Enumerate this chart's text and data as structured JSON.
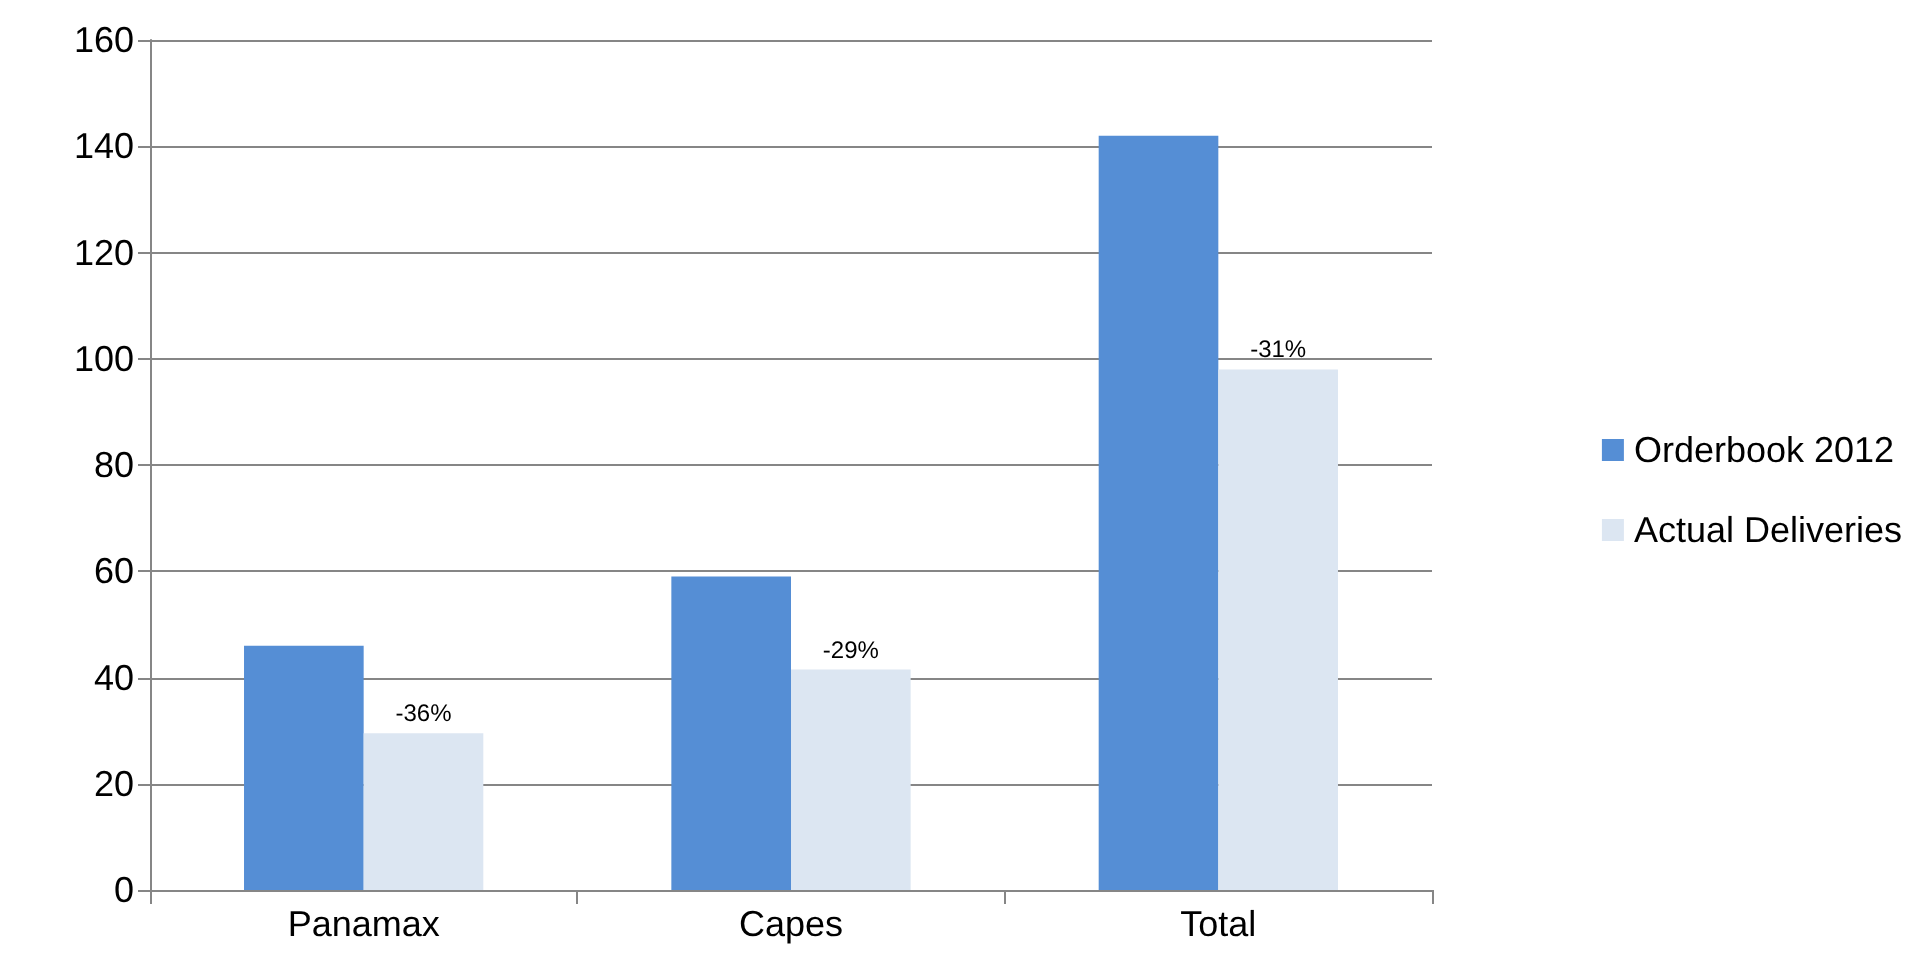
{
  "chart_data": {
    "type": "bar",
    "categories": [
      "Panamax",
      "Capes",
      "Total"
    ],
    "series": [
      {
        "name": "Orderbook 2012",
        "color": "#558ed5",
        "values": [
          46,
          59,
          142
        ]
      },
      {
        "name": "Actual Deliveries",
        "color": "#dce6f2",
        "values": [
          29.5,
          41.5,
          98
        ]
      }
    ],
    "annotations": [
      {
        "text": "-36%",
        "x": "Panamax",
        "y": 29.5
      },
      {
        "text": "-29%",
        "x": "Capes",
        "y": 41.5
      },
      {
        "text": "-31%",
        "x": "Total",
        "y": 98
      }
    ],
    "ylim": [
      0,
      160
    ],
    "yticks": [
      0,
      20,
      40,
      60,
      80,
      100,
      120,
      140,
      160
    ],
    "grid": "y",
    "legend": "right"
  }
}
